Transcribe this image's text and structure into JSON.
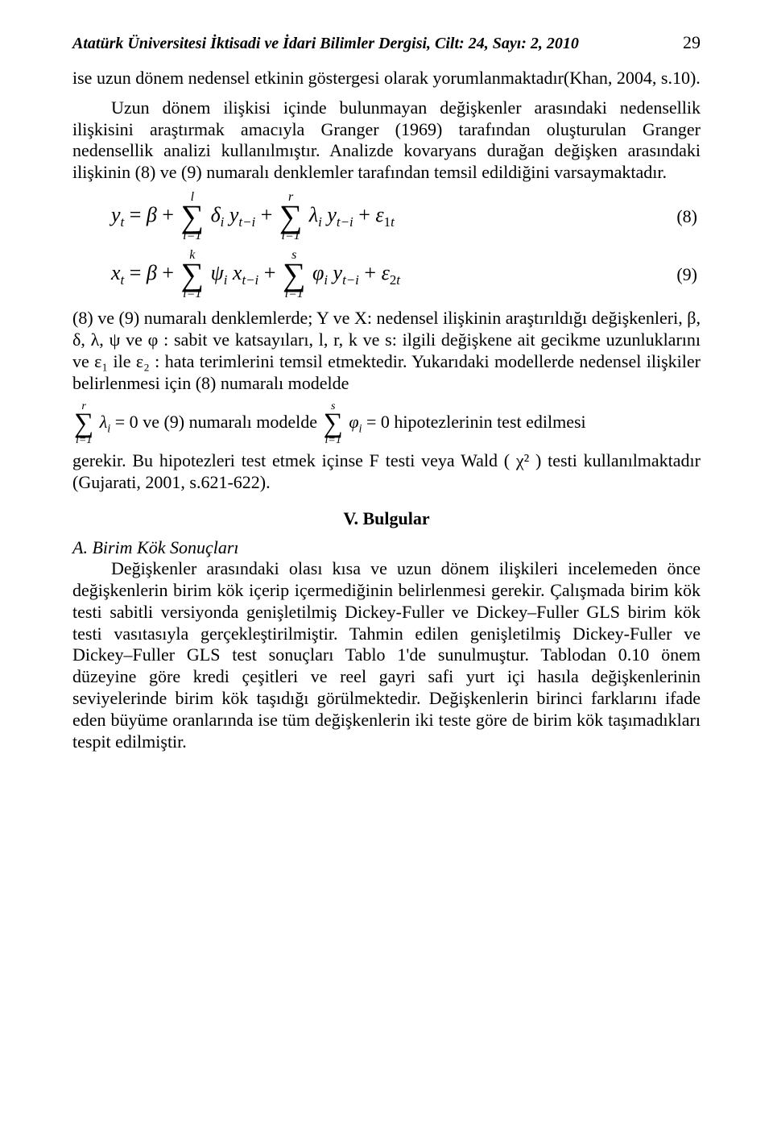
{
  "header": {
    "journal": "Atatürk Üniversitesi İktisadi ve İdari Bilimler Dergisi, Cilt: 24,  Sayı: 2, 2010",
    "page_number": "29"
  },
  "intro_fragment": "ise uzun dönem nedensel etkinin göstergesi olarak yorumlanmaktadır(Khan, 2004, s.10).",
  "para1": "Uzun dönem ilişkisi içinde bulunmayan değişkenler arasındaki nedensellik ilişkisini araştırmak amacıyla Granger (1969) tarafından oluşturulan Granger nedensellik analizi kullanılmıştır. Analizde kovaryans durağan değişken arasındaki ilişkinin (8) ve (9) numaralı denklemler tarafından temsil edildiğini varsaymaktadır.",
  "eq8_num": "(8)",
  "eq9_num": "(9)",
  "para2": "(8) ve (9) numaralı denklemlerde; Y ve X: nedensel ilişkinin araştırıldığı değişkenleri, β, δ, λ, ψ ve φ : sabit ve katsayıları, l, r, k ve s: ilgili değişkene ait gecikme uzunluklarını ve ε₁ ile ε₂ : hata terimlerini temsil etmektedir. Yukarıdaki modellerde nedensel ilişkiler belirlenmesi için (8) numaralı modelde",
  "para2b_mid": " ve (9) numaralı modelde",
  "para2b_end": " hipotezlerinin test edilmesi",
  "para2c": "gerekir. Bu hipotezleri test etmek içinse F testi veya Wald ( χ² ) testi kullanılmaktadır (Gujarati, 2001, s.621-622).",
  "section5": "V. Bulgular",
  "subA_title": "A. Birim Kök Sonuçları",
  "subA_body": "Değişkenler arasındaki olası kısa ve uzun dönem ilişkileri incelemeden önce değişkenlerin birim kök içerip içermediğinin belirlenmesi gerekir. Çalışmada birim kök testi sabitli versiyonda genişletilmiş Dickey-Fuller ve Dickey–Fuller GLS birim kök testi vasıtasıyla gerçekleştirilmiştir. Tahmin edilen genişletilmiş Dickey-Fuller ve Dickey–Fuller GLS test sonuçları Tablo 1'de sunulmuştur.  Tablodan 0.10 önem düzeyine göre kredi çeşitleri ve reel gayri safi yurt içi hasıla değişkenlerinin seviyelerinde birim kök taşıdığı görülmektedir. Değişkenlerin birinci farklarını ifade eden büyüme oranlarında ise tüm değişkenlerin iki teste göre de birim kök taşımadıkları tespit edilmiştir."
}
